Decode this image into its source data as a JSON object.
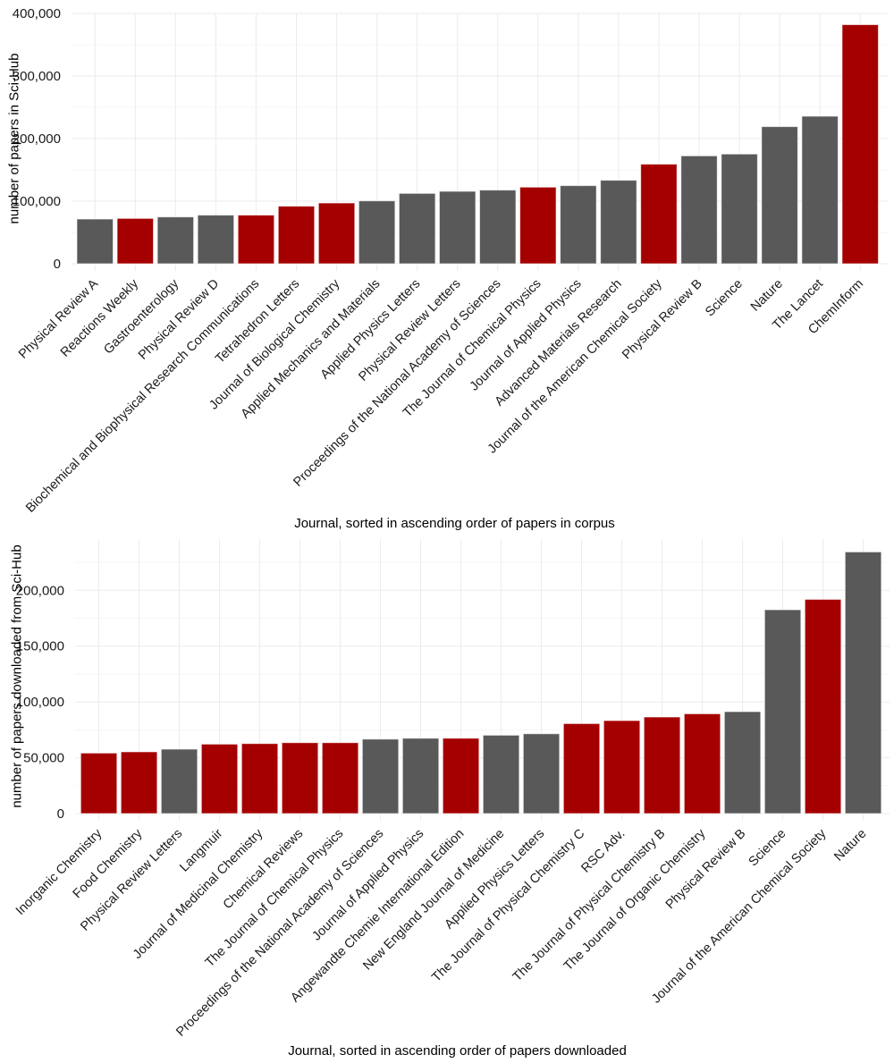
{
  "colors": {
    "highlight": "#a50000",
    "default": "#595959"
  },
  "chart_data": [
    {
      "type": "bar",
      "title": "",
      "xlabel": "Journal, sorted in ascending order of papers in corpus",
      "ylabel": "number of papers in Sci-Hub",
      "ylim": [
        0,
        400000
      ],
      "yticks": [
        0,
        100000,
        200000,
        300000,
        400000
      ],
      "ytick_labels": [
        "0",
        "100,000",
        "200,000",
        "300,000",
        "400,000"
      ],
      "grid": true,
      "categories": [
        "Physical Review A",
        "Reactions Weekly",
        "Gastroenterology",
        "Physical Review D",
        "Biochemical and Biophysical Research Communications",
        "Tetrahedron Letters",
        "Journal of Biological Chemistry",
        "Applied Mechanics and Materials",
        "Applied Physics Letters",
        "Physical Review Letters",
        "Proceedings of the National Academy of Sciences",
        "The Journal of Chemical Physics",
        "Journal of Applied Physics",
        "Advanced Materials Research",
        "Journal of the American Chemical Society",
        "Physical Review B",
        "Science",
        "Nature",
        "The Lancet",
        "ChemInform"
      ],
      "values": [
        71400,
        72400,
        74800,
        77700,
        77700,
        92000,
        97100,
        100500,
        112400,
        115700,
        117700,
        122400,
        124800,
        133400,
        159100,
        172400,
        175300,
        219100,
        235700,
        382000
      ],
      "highlighted": [
        false,
        true,
        false,
        false,
        true,
        true,
        true,
        false,
        false,
        false,
        false,
        true,
        false,
        false,
        true,
        false,
        false,
        false,
        false,
        true
      ]
    },
    {
      "type": "bar",
      "title": "",
      "xlabel": "Journal, sorted in ascending order of papers downloaded",
      "ylabel": "number of papers downloaded from Sci-Hub",
      "ylim": [
        0,
        240000
      ],
      "yticks": [
        0,
        50000,
        100000,
        150000,
        200000
      ],
      "ytick_labels": [
        "0",
        "50,000",
        "100,000",
        "150,000",
        "200,000"
      ],
      "grid": true,
      "categories": [
        "Inorganic Chemistry",
        "Food Chemistry",
        "Physical Review Letters",
        "Langmuir",
        "Journal of Medicinal Chemistry",
        "Chemical Reviews",
        "The Journal of Chemical Physics",
        "Proceedings of the National Academy of Sciences",
        "Journal of Applied Physics",
        "Angewandte Chemie International Edition",
        "New England Journal of Medicine",
        "Applied Physics Letters",
        "The Journal of Physical Chemistry C",
        "RSC Adv.",
        "The Journal of Physical Chemistry B",
        "The Journal of Organic Chemistry",
        "Physical Review B",
        "Science",
        "Journal of the American Chemical Society",
        "Nature"
      ],
      "values": [
        54200,
        55300,
        57700,
        62200,
        62700,
        63500,
        63500,
        66700,
        67500,
        67500,
        70200,
        71500,
        80600,
        83300,
        86500,
        89400,
        91300,
        182600,
        191900,
        234400
      ],
      "highlighted": [
        true,
        true,
        false,
        true,
        true,
        true,
        true,
        false,
        false,
        true,
        false,
        false,
        true,
        true,
        true,
        true,
        false,
        false,
        true,
        false
      ]
    }
  ]
}
